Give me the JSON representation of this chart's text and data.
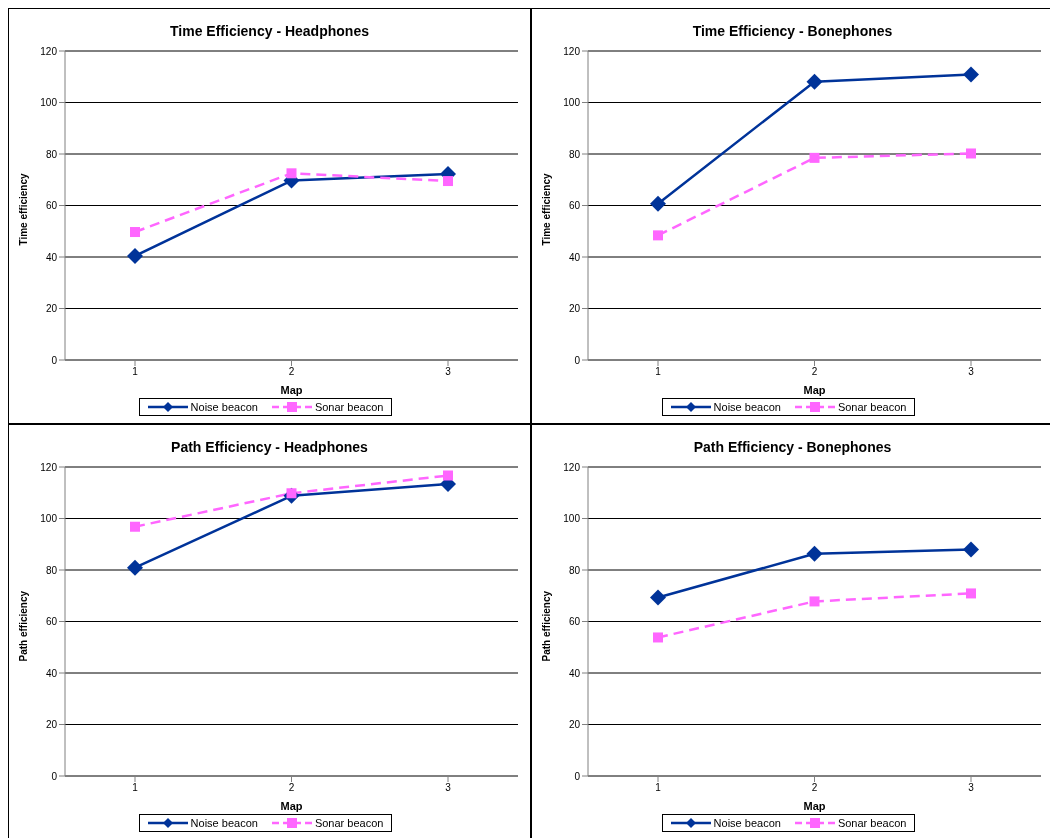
{
  "chart_data": [
    {
      "type": "line",
      "title": "Time Efficiency - Headphones",
      "xlabel": "Map",
      "ylabel": "Time efficiency",
      "categories": [
        "1",
        "2",
        "3"
      ],
      "ylim": [
        0,
        120
      ],
      "yticks": [
        0,
        20,
        40,
        60,
        80,
        100,
        120
      ],
      "grid": "y",
      "legend": "bottom",
      "series": [
        {
          "name": "Noise beacon",
          "color": "#003399",
          "marker": "diamond",
          "line_style": "solid",
          "values": [
            40.4,
            69.7,
            72.2
          ]
        },
        {
          "name": "Sonar beacon",
          "color": "#ff66ff",
          "marker": "square",
          "line_style": "dashed",
          "values": [
            49.7,
            72.5,
            69.5
          ]
        }
      ]
    },
    {
      "type": "line",
      "title": "Time Efficiency - Bonephones",
      "xlabel": "Map",
      "ylabel": "Time efficiency",
      "categories": [
        "1",
        "2",
        "3"
      ],
      "ylim": [
        0,
        120
      ],
      "yticks": [
        0,
        20,
        40,
        60,
        80,
        100,
        120
      ],
      "grid": "y",
      "legend": "bottom",
      "series": [
        {
          "name": "Noise beacon",
          "color": "#003399",
          "marker": "diamond",
          "line_style": "solid",
          "values": [
            60.7,
            108.1,
            110.9
          ]
        },
        {
          "name": "Sonar beacon",
          "color": "#ff66ff",
          "marker": "square",
          "line_style": "dashed",
          "values": [
            48.4,
            78.5,
            80.2
          ]
        }
      ]
    },
    {
      "type": "line",
      "title": "Path Efficiency - Headphones",
      "xlabel": "Map",
      "ylabel": "Path efficiency",
      "categories": [
        "1",
        "2",
        "3"
      ],
      "ylim": [
        0,
        120
      ],
      "yticks": [
        0,
        20,
        40,
        60,
        80,
        100,
        120
      ],
      "grid": "y",
      "legend": "bottom",
      "series": [
        {
          "name": "Noise beacon",
          "color": "#003399",
          "marker": "diamond",
          "line_style": "solid",
          "values": [
            80.9,
            108.8,
            113.4
          ]
        },
        {
          "name": "Sonar beacon",
          "color": "#ff66ff",
          "marker": "square",
          "line_style": "dashed",
          "values": [
            96.8,
            109.8,
            116.7
          ]
        }
      ]
    },
    {
      "type": "line",
      "title": "Path Efficiency - Bonephones",
      "xlabel": "Map",
      "ylabel": "Path efficiency",
      "categories": [
        "1",
        "2",
        "3"
      ],
      "ylim": [
        0,
        120
      ],
      "yticks": [
        0,
        20,
        40,
        60,
        80,
        100,
        120
      ],
      "grid": "y",
      "legend": "bottom",
      "series": [
        {
          "name": "Noise beacon",
          "color": "#003399",
          "marker": "diamond",
          "line_style": "solid",
          "values": [
            69.3,
            86.3,
            88.0
          ]
        },
        {
          "name": "Sonar beacon",
          "color": "#ff66ff",
          "marker": "square",
          "line_style": "dashed",
          "values": [
            53.8,
            67.8,
            70.9
          ]
        }
      ]
    }
  ]
}
